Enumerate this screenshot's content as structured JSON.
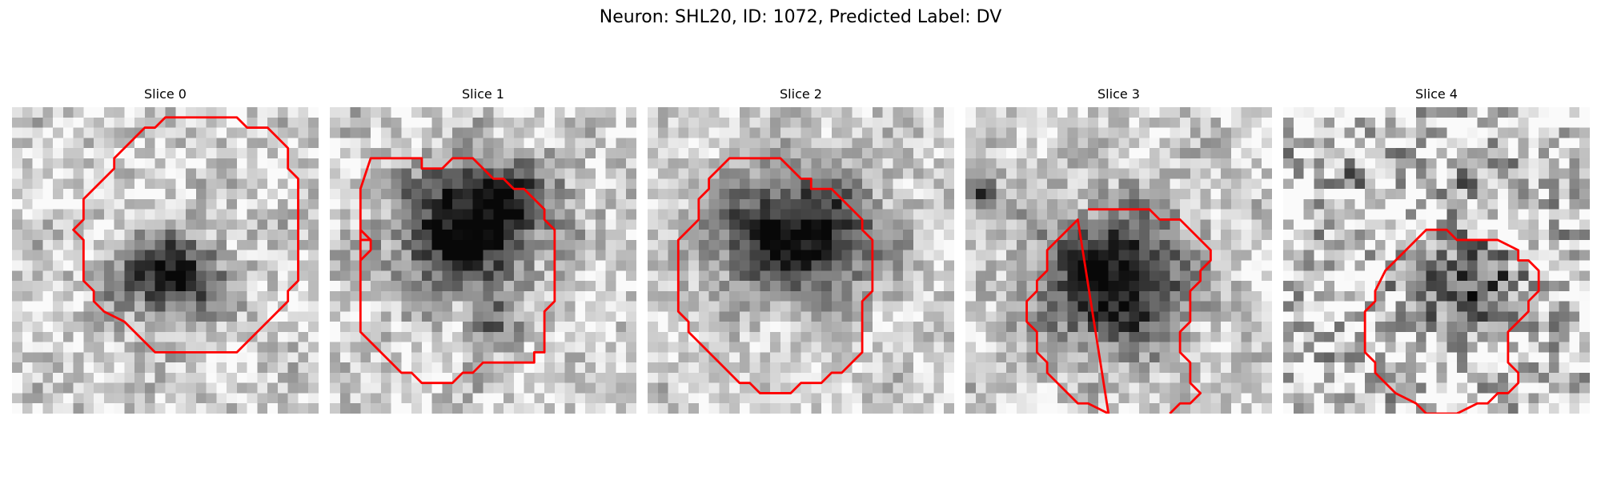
{
  "figure": {
    "title": "Neuron: SHL20, ID: 1072, Predicted Label: DV"
  },
  "contour_color": "#ff0000",
  "slices": [
    {
      "title": "Slice 0"
    },
    {
      "title": "Slice 1"
    },
    {
      "title": "Slice 2"
    },
    {
      "title": "Slice 3"
    },
    {
      "title": "Slice 4"
    }
  ]
}
